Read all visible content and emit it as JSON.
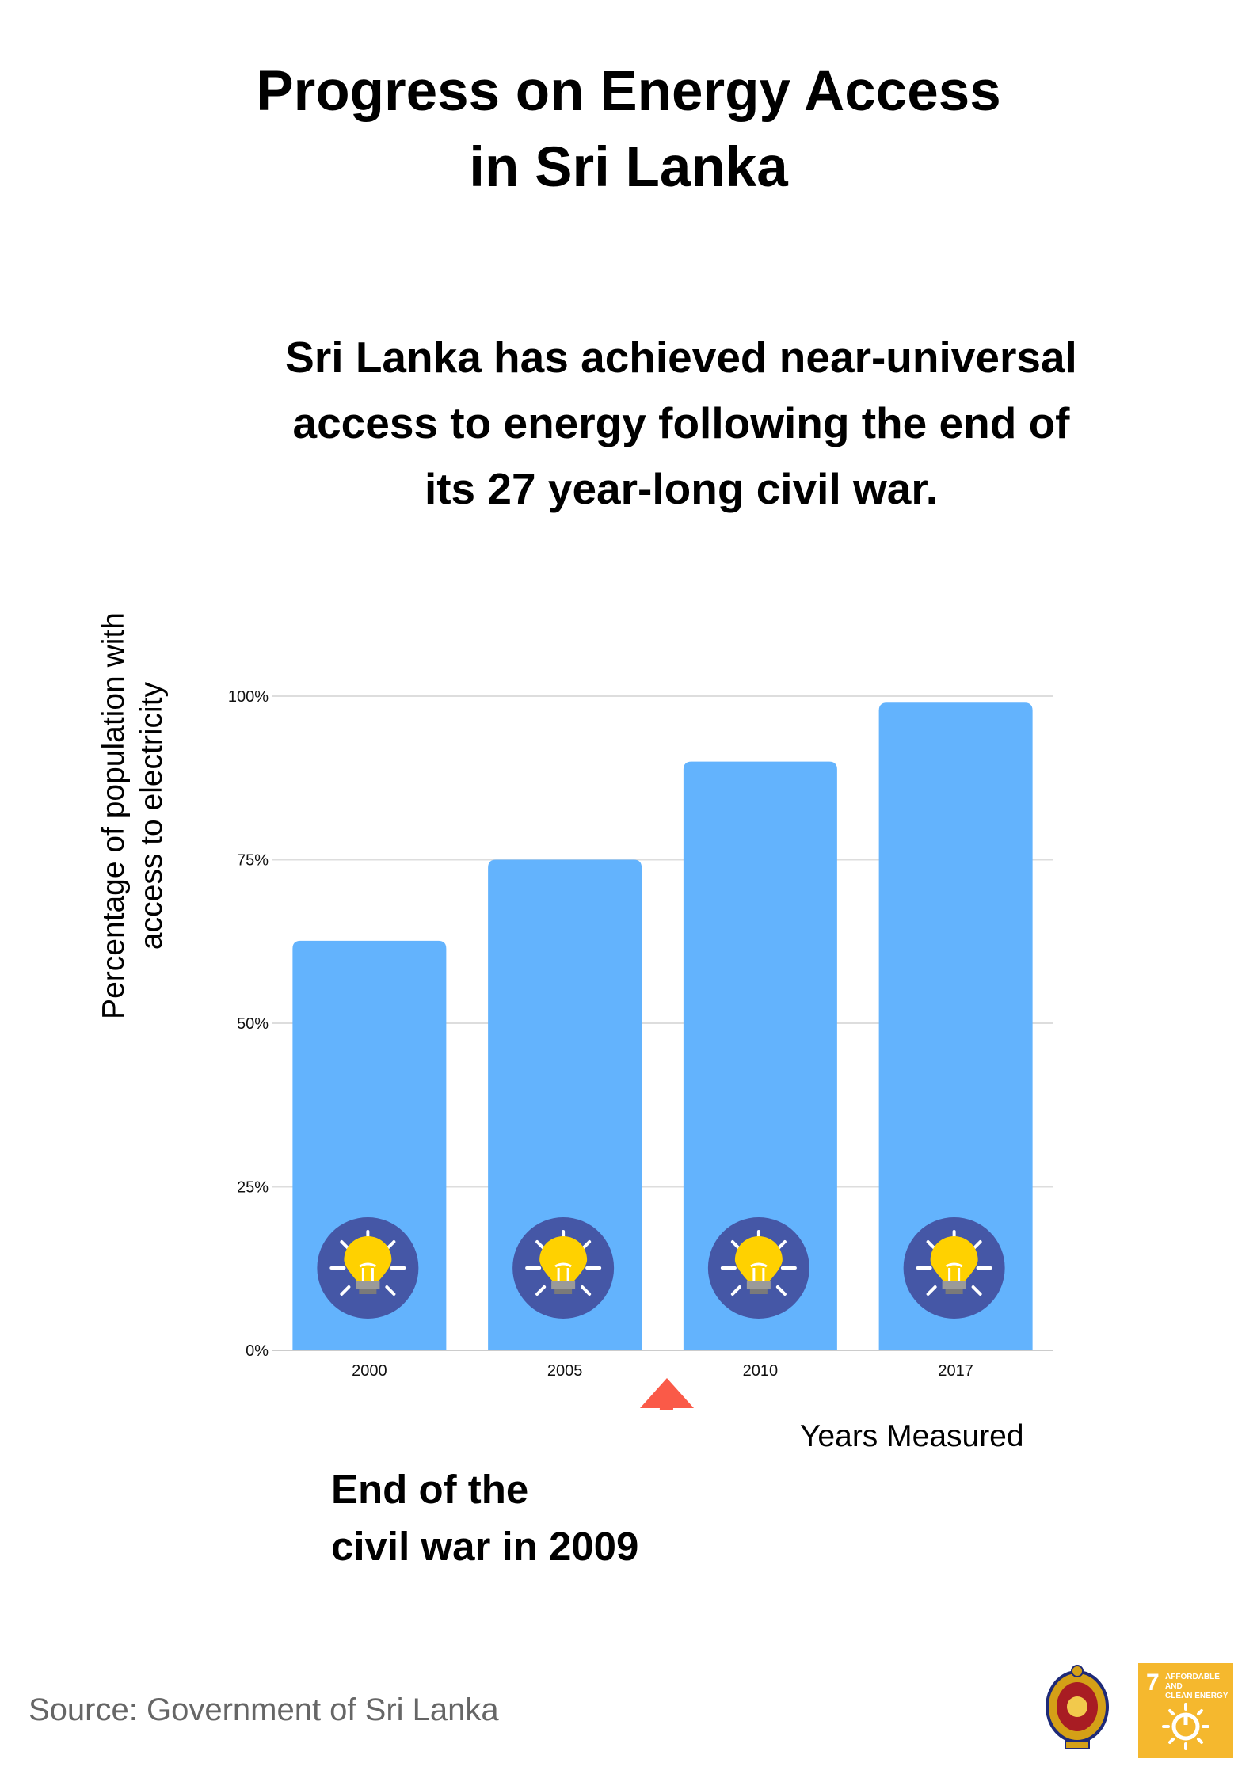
{
  "title": [
    "Progress on Energy Access",
    "in Sri Lanka"
  ],
  "subtitle": [
    "Sri Lanka has achieved near-universal",
    "access to energy following the end of",
    "its 27 year-long civil war."
  ],
  "annotation": [
    "End of the",
    "civil war in 2009"
  ],
  "source": "Source: Government of Sri Lanka",
  "sdg_badge": {
    "number": "7",
    "lines": [
      "AFFORDABLE AND",
      "CLEAN ENERGY"
    ]
  },
  "colors": {
    "bar": "#63b3fd",
    "gridline": "#dddddd",
    "arrow": "#fa5a48",
    "icon_circle": "#4557a6",
    "bulb": "#ffd100",
    "sdg_badge": "#f5b82e"
  },
  "icons": [
    "lightbulb-icon",
    "sri-lanka-emblem-icon",
    "sdg7-icon"
  ],
  "chart_data": {
    "type": "bar",
    "categories": [
      "2000",
      "2005",
      "2010",
      "2017"
    ],
    "values": [
      62.6,
      75,
      90,
      99
    ],
    "xlabel": "Years Measured",
    "ylabel": [
      "Percentage of population with",
      "access to electricity"
    ],
    "ylim": [
      0,
      100
    ],
    "yticks": [
      {
        "value": 0,
        "label": "0%"
      },
      {
        "value": 25,
        "label": "25%"
      },
      {
        "value": 50,
        "label": "50%"
      },
      {
        "value": 75,
        "label": "75%"
      },
      {
        "value": 100,
        "label": "100%"
      }
    ],
    "grid": true,
    "legend": "none"
  }
}
